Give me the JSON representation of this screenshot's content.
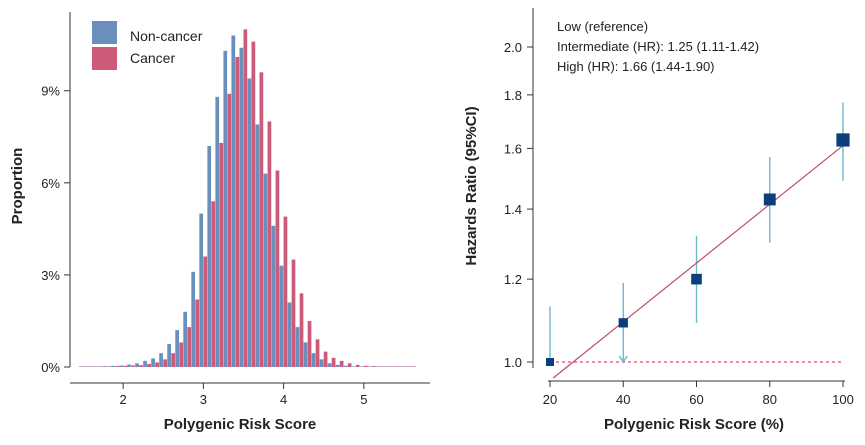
{
  "chart_data": [
    {
      "type": "bar",
      "subtype": "histogram",
      "xlabel": "Polygenic Risk Score",
      "ylabel": "Proportion",
      "xlim": [
        1.4,
        5.7
      ],
      "ylim": [
        0,
        11.5
      ],
      "xticks": [
        2,
        3,
        4,
        5
      ],
      "yticks": [
        0,
        3,
        6,
        9
      ],
      "ytick_labels": [
        "0%",
        "3%",
        "6%",
        "9%"
      ],
      "legend_position": "top-left",
      "bin_width": 0.1,
      "x": [
        1.5,
        1.6,
        1.7,
        1.8,
        1.9,
        2.0,
        2.1,
        2.2,
        2.3,
        2.4,
        2.5,
        2.6,
        2.7,
        2.8,
        2.9,
        3.0,
        3.1,
        3.2,
        3.3,
        3.4,
        3.5,
        3.6,
        3.7,
        3.8,
        3.9,
        4.0,
        4.1,
        4.2,
        4.3,
        4.4,
        4.5,
        4.6,
        4.7,
        4.8,
        4.9,
        5.0,
        5.1,
        5.2,
        5.3,
        5.4,
        5.5,
        5.6
      ],
      "series": [
        {
          "name": "Non-cancer",
          "color": "#6a8fbd",
          "values": [
            0.02,
            0.02,
            0.02,
            0.03,
            0.04,
            0.05,
            0.08,
            0.12,
            0.2,
            0.28,
            0.45,
            0.75,
            1.2,
            1.8,
            3.1,
            5.0,
            7.2,
            8.8,
            10.3,
            10.8,
            10.4,
            9.4,
            7.9,
            6.3,
            4.6,
            3.3,
            2.1,
            1.3,
            0.8,
            0.45,
            0.25,
            0.12,
            0.07,
            0.04,
            0.02,
            0.02,
            0.01,
            0.01,
            0.01,
            0.01,
            0.01,
            0.01
          ]
        },
        {
          "name": "Cancer",
          "color": "#cc5a78",
          "values": [
            0.02,
            0.02,
            0.02,
            0.02,
            0.03,
            0.04,
            0.05,
            0.06,
            0.1,
            0.15,
            0.25,
            0.45,
            0.8,
            1.3,
            2.2,
            3.6,
            5.4,
            7.3,
            8.9,
            10.1,
            11.0,
            10.6,
            9.6,
            8.0,
            6.4,
            4.9,
            3.5,
            2.4,
            1.5,
            0.9,
            0.5,
            0.3,
            0.2,
            0.12,
            0.07,
            0.04,
            0.03,
            0.02,
            0.02,
            0.01,
            0.01,
            0.01
          ]
        }
      ]
    },
    {
      "type": "scatter",
      "subtype": "error_bar_trend",
      "xlabel": "Polygenic Risk Score (%)",
      "ylabel": "Hazards Ratio (95%CI)",
      "xlim": [
        20,
        100
      ],
      "ylim_log": [
        1.0,
        2.0
      ],
      "yscale": "log",
      "xticks": [
        20,
        40,
        60,
        80,
        100
      ],
      "yticks": [
        1.0,
        1.2,
        1.4,
        1.6,
        1.8,
        2.0
      ],
      "ytick_labels": [
        "1.0",
        "1.2",
        "1.4",
        "1.6",
        "1.8",
        "2.0"
      ],
      "points": [
        {
          "x": 20,
          "hr": 1.0,
          "lo": 1.0,
          "hi": 1.13
        },
        {
          "x": 40,
          "hr": 1.09,
          "lo": 1.0,
          "hi": 1.19
        },
        {
          "x": 60,
          "hr": 1.2,
          "lo": 1.09,
          "hi": 1.32
        },
        {
          "x": 80,
          "hr": 1.43,
          "lo": 1.3,
          "hi": 1.57
        },
        {
          "x": 100,
          "hr": 1.63,
          "lo": 1.49,
          "hi": 1.77
        }
      ],
      "trend_line": {
        "x": [
          20,
          100
        ],
        "hr": [
          0.96,
          1.61
        ],
        "color": "#c04a6a"
      },
      "reference_line": {
        "hr": 1.0,
        "style": "dashed",
        "color": "#d8506c"
      },
      "marker_color": "#0b3e7a",
      "errorbar_color": "#6cb6d2",
      "annotations": [
        "Low (reference)",
        "Intermediate (HR): 1.25 (1.11-1.42)",
        "High (HR): 1.66 (1.44-1.90)"
      ]
    }
  ]
}
